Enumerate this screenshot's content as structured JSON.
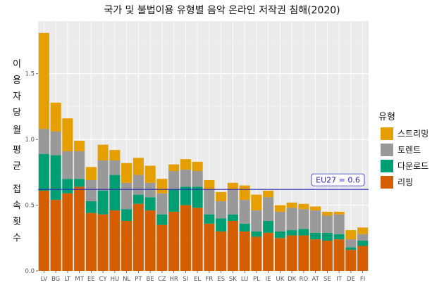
{
  "chart_data": {
    "type": "bar",
    "stacked": true,
    "title": "국가 및 불법이용 유형별 음악 온라인 저작권 침해(2020)",
    "ylabel_chars": [
      "이",
      "용",
      "자",
      "당",
      "월",
      "평",
      "균",
      "접",
      "속",
      "횟",
      "수"
    ],
    "ylim": [
      0,
      1.9
    ],
    "yticks": [
      "0.0",
      "0.5",
      "1.0",
      "1.5"
    ],
    "ytick_values": [
      0,
      0.5,
      1.0,
      1.5
    ],
    "grid": true,
    "legend_title": "유형",
    "legend_position": "right",
    "categories": [
      "LV",
      "BG",
      "LT",
      "MT",
      "EE",
      "CY",
      "HU",
      "NL",
      "PT",
      "BE",
      "CZ",
      "HR",
      "SI",
      "EL",
      "FR",
      "ES",
      "SK",
      "LU",
      "PL",
      "IE",
      "UK",
      "DK",
      "RO",
      "AT",
      "SE",
      "IT",
      "DE",
      "FI"
    ],
    "series": [
      {
        "name": "스트리밍",
        "color": "#E69F00",
        "values": [
          0.73,
          0.22,
          0.25,
          0.08,
          0.1,
          0.12,
          0.08,
          0.15,
          0.13,
          0.13,
          0.11,
          0.05,
          0.08,
          0.07,
          0.07,
          0.07,
          0.05,
          0.11,
          0.12,
          0.05,
          0.05,
          0.04,
          0.04,
          0.03,
          0.03,
          0.02,
          0.07,
          0.05
        ]
      },
      {
        "name": "토렌트",
        "color": "#999999",
        "values": [
          0.19,
          0.18,
          0.21,
          0.21,
          0.16,
          0.23,
          0.11,
          0.2,
          0.15,
          0.11,
          0.16,
          0.14,
          0.13,
          0.12,
          0.19,
          0.13,
          0.19,
          0.18,
          0.16,
          0.18,
          0.15,
          0.17,
          0.15,
          0.17,
          0.13,
          0.15,
          0.06,
          0.05
        ]
      },
      {
        "name": "다운로드",
        "color": "#009E73",
        "values": [
          0.28,
          0.34,
          0.11,
          0.06,
          0.09,
          0.18,
          0.27,
          0.09,
          0.07,
          0.1,
          0.08,
          0.17,
          0.14,
          0.16,
          0.07,
          0.1,
          0.05,
          0.06,
          0.04,
          0.09,
          0.05,
          0.04,
          0.05,
          0.05,
          0.06,
          0.04,
          0.02,
          0.04
        ]
      },
      {
        "name": "리핑",
        "color": "#D55E00",
        "values": [
          0.61,
          0.54,
          0.59,
          0.64,
          0.44,
          0.43,
          0.46,
          0.38,
          0.51,
          0.46,
          0.35,
          0.45,
          0.5,
          0.48,
          0.36,
          0.3,
          0.38,
          0.3,
          0.26,
          0.29,
          0.25,
          0.27,
          0.27,
          0.24,
          0.23,
          0.24,
          0.16,
          0.19
        ]
      }
    ],
    "reference_line": {
      "label": "EU27 = 0.6",
      "value": 0.62,
      "color": "#2a2ab8"
    }
  }
}
